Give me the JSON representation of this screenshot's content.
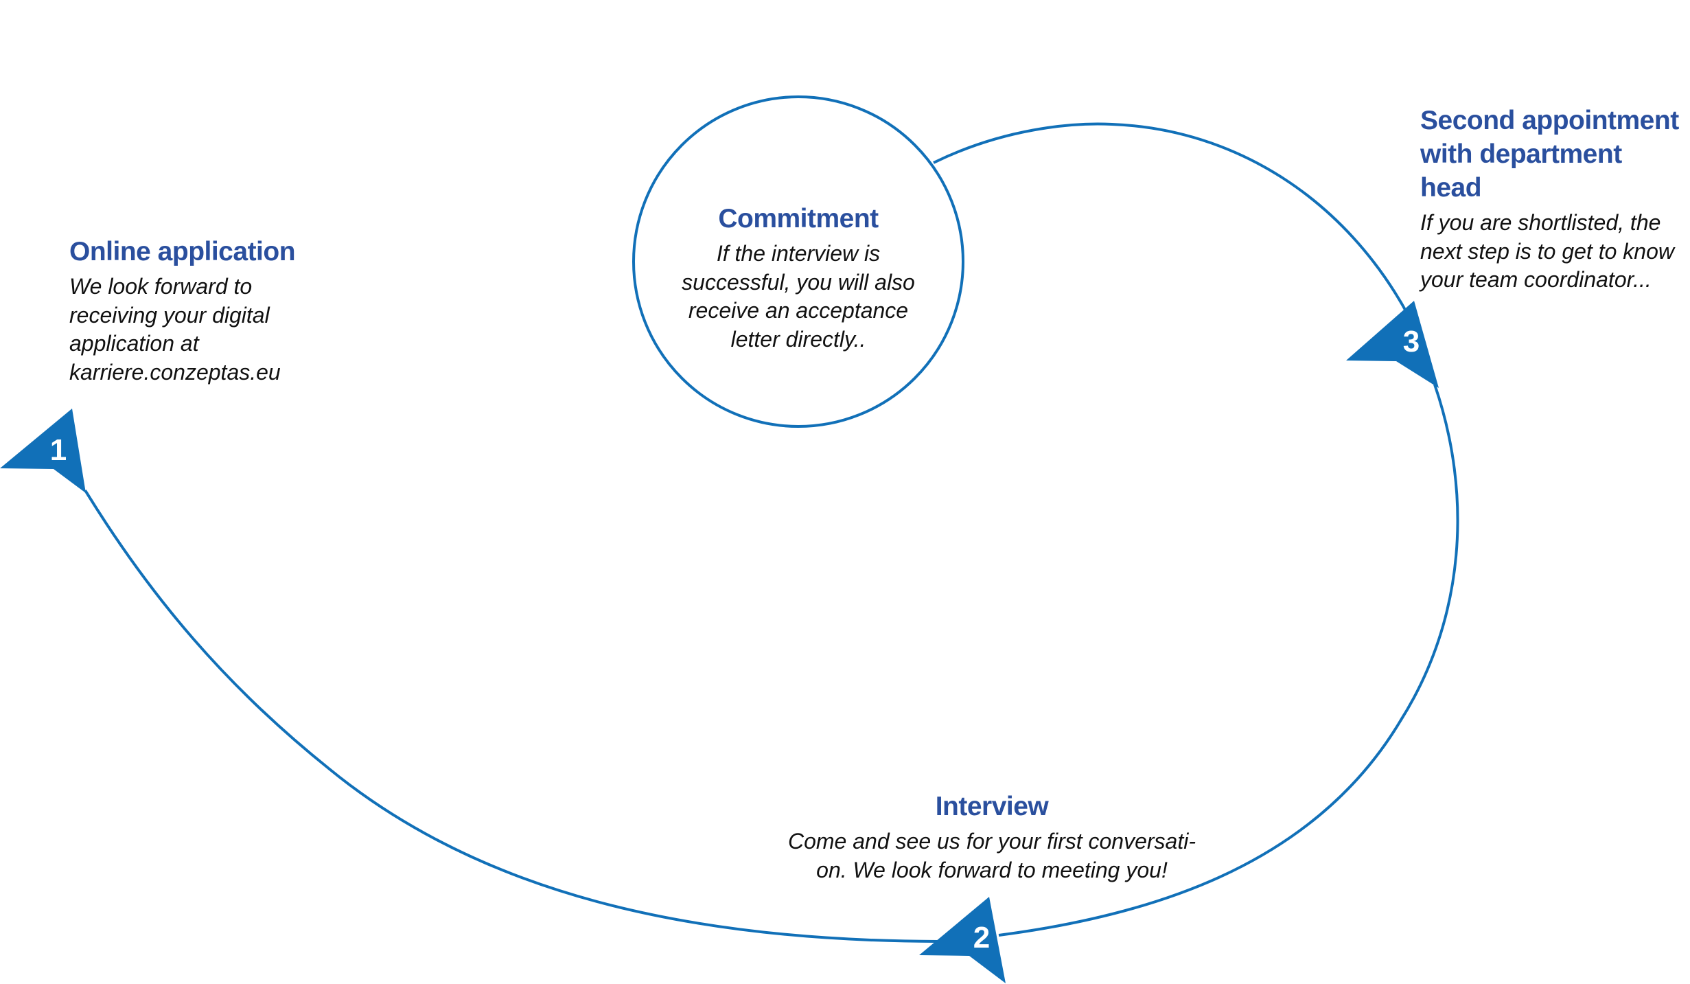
{
  "colors": {
    "accent": "#1170b8",
    "title": "#2a4f9e",
    "text": "#111111"
  },
  "steps": [
    {
      "number": "1",
      "title": "Online application",
      "text": "We look forward to\nreceiving your digital\napplication at\nkarriere.conzeptas.eu"
    },
    {
      "number": "2",
      "title": "Interview",
      "text": "Come and see us for your first conversati-\non. We look forward to meeting you!"
    },
    {
      "number": "3",
      "title": "Second appointment\nwith department head",
      "text": "If you are shortlisted, the\nnext step is to get to know\nyour team coordinator..."
    }
  ],
  "commitment": {
    "title": "Commitment",
    "text": "If the interview is\nsuccessful, you will also\nreceive an acceptance\nletter directly.."
  }
}
